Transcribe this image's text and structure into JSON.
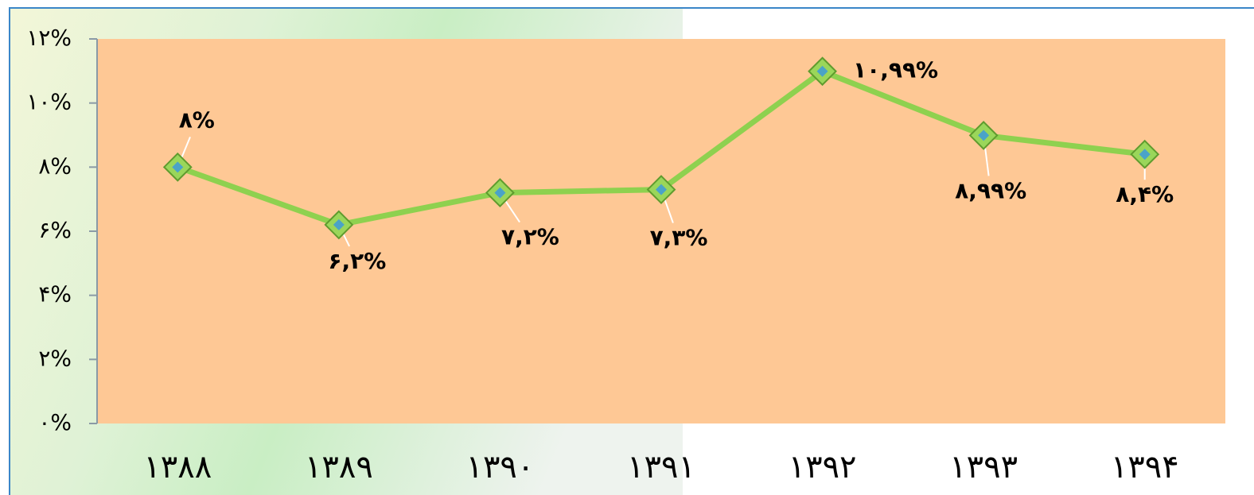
{
  "chart_data": {
    "type": "line",
    "categories": [
      "۱۳۸۸",
      "۱۳۸۹",
      "۱۳۹۰",
      "۱۳۹۱",
      "۱۳۹۲",
      "۱۳۹۳",
      "۱۳۹۴"
    ],
    "series": [
      {
        "color": "#8ed14f",
        "values": [
          8,
          6.2,
          7.2,
          7.3,
          10.99,
          8.99,
          8.4
        ],
        "value_labels": [
          "۸%",
          "۶,۲%",
          "۷,۲%",
          "۷,۳%",
          "۱۰,۹۹%",
          "۸,۹۹%",
          "۸,۴%"
        ]
      }
    ],
    "ylim": [
      0,
      12
    ],
    "yticks": [
      {
        "value": 0,
        "label": "۰%"
      },
      {
        "value": 2,
        "label": "۲%"
      },
      {
        "value": 4,
        "label": "۴%"
      },
      {
        "value": 6,
        "label": "۶%"
      },
      {
        "value": 8,
        "label": "۸%"
      },
      {
        "value": 10,
        "label": "۱۰%"
      },
      {
        "value": 12,
        "label": "۱۲%"
      }
    ],
    "plot_background": "#fec895"
  }
}
